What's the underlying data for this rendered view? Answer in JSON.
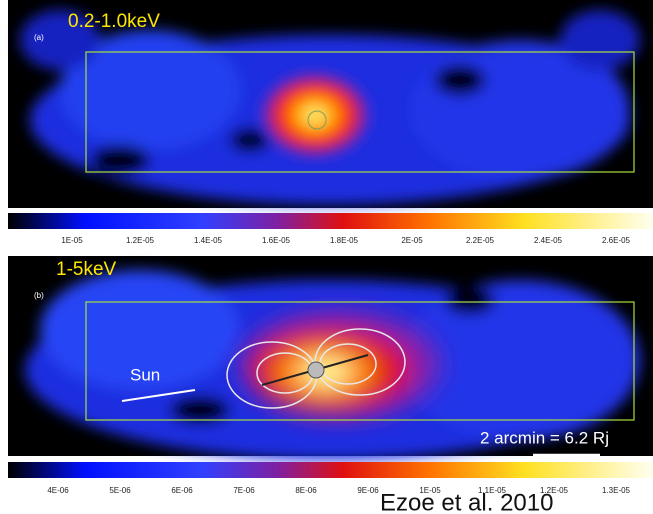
{
  "panels": [
    {
      "label": "(a)",
      "band": "0.2-1.0keV",
      "colorbar_ticks": [
        "1E-05",
        "1.2E-05",
        "1.4E-05",
        "1.6E-05",
        "1.8E-05",
        "2E-05",
        "2.2E-05",
        "2.4E-05",
        "2.6E-05"
      ]
    },
    {
      "label": "(b)",
      "band": "1-5keV",
      "colorbar_ticks": [
        "4E-06",
        "5E-06",
        "6E-06",
        "7E-06",
        "8E-06",
        "9E-06",
        "1E-05",
        "1.1E-05",
        "1.2E-05",
        "1.3E-05"
      ],
      "sun_label": "Sun",
      "scale_label": "2 arcmin = 6.2 Rj"
    }
  ],
  "citation": "Ezoe et al. 2010"
}
